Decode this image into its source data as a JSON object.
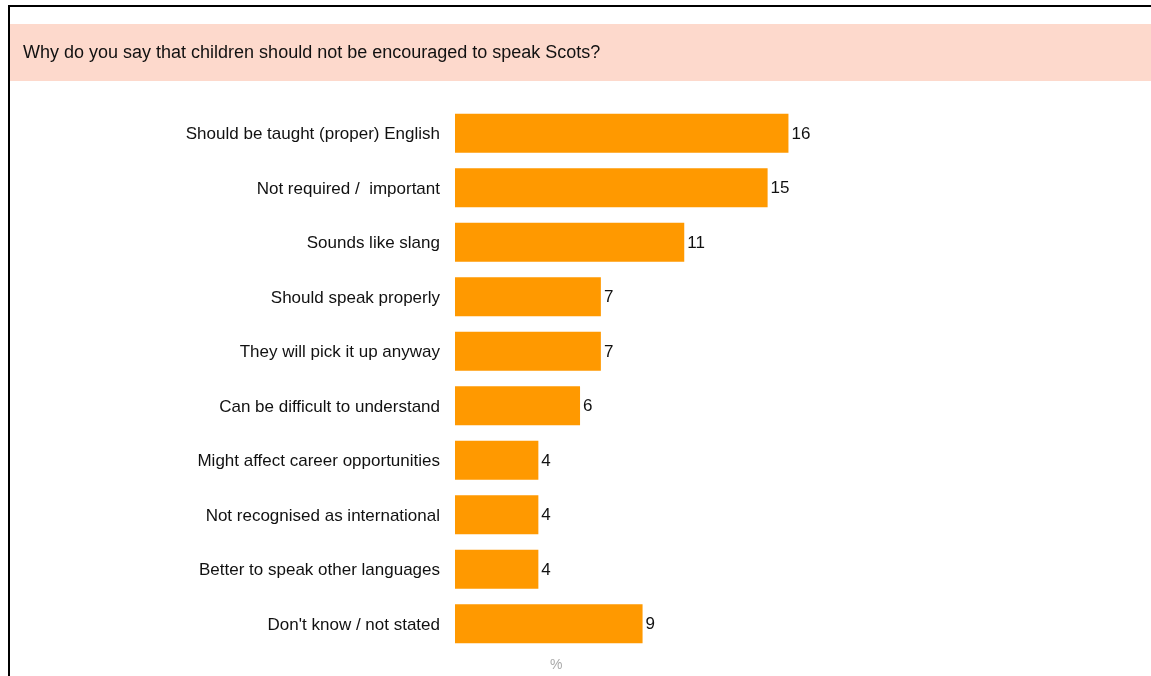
{
  "chart_data": {
    "type": "bar",
    "orientation": "horizontal",
    "title": "Why do you say that children should not be encouraged to speak Scots?",
    "xlabel": "%",
    "categories": [
      "Should be taught (proper) English",
      "Not required /  important",
      "Sounds like slang",
      "Should speak properly",
      "They will pick it up anyway",
      "Can be difficult to understand",
      "Might affect career opportunities",
      "Not recognised as international",
      "Better to speak other languages",
      "Don't know / not stated"
    ],
    "values": [
      16,
      15,
      11,
      7,
      7,
      6,
      4,
      4,
      4,
      9
    ],
    "color": "#ff9900",
    "data_labels": true
  }
}
